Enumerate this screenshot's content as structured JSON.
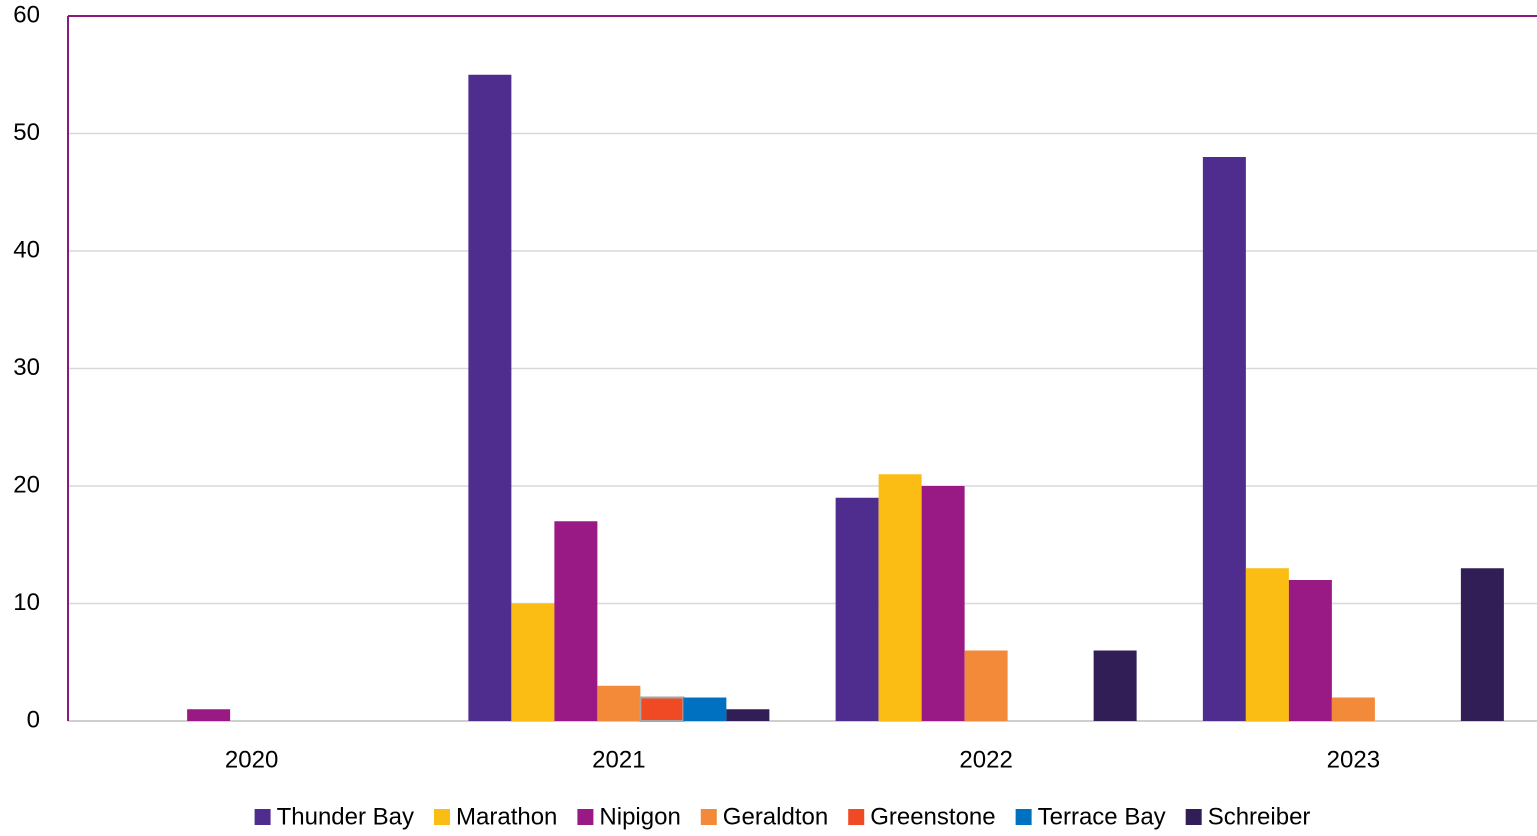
{
  "chart_data": {
    "type": "bar",
    "categories": [
      "2020",
      "2021",
      "2022",
      "2023"
    ],
    "series": [
      {
        "name": "Thunder Bay",
        "color": "#4f2d8f",
        "values": [
          0,
          55,
          19,
          48
        ]
      },
      {
        "name": "Marathon",
        "color": "#fbbc13",
        "values": [
          0,
          10,
          21,
          13
        ]
      },
      {
        "name": "Nipigon",
        "color": "#9a1a85",
        "values": [
          1,
          17,
          20,
          12
        ]
      },
      {
        "name": "Geraldton",
        "color": "#f28a3a",
        "values": [
          0,
          3,
          6,
          2
        ]
      },
      {
        "name": "Greenstone",
        "color": "#ef4a23",
        "values": [
          0,
          2,
          0,
          0
        ]
      },
      {
        "name": "Terrace Bay",
        "color": "#0070c0",
        "values": [
          0,
          2,
          0,
          0
        ]
      },
      {
        "name": "Schreiber",
        "color": "#321e57",
        "values": [
          0,
          1,
          6,
          13
        ]
      }
    ],
    "ylim": [
      0,
      60
    ],
    "yticks": [
      0,
      10,
      20,
      30,
      40,
      50,
      60
    ],
    "grid": true,
    "legend": "bottom"
  }
}
